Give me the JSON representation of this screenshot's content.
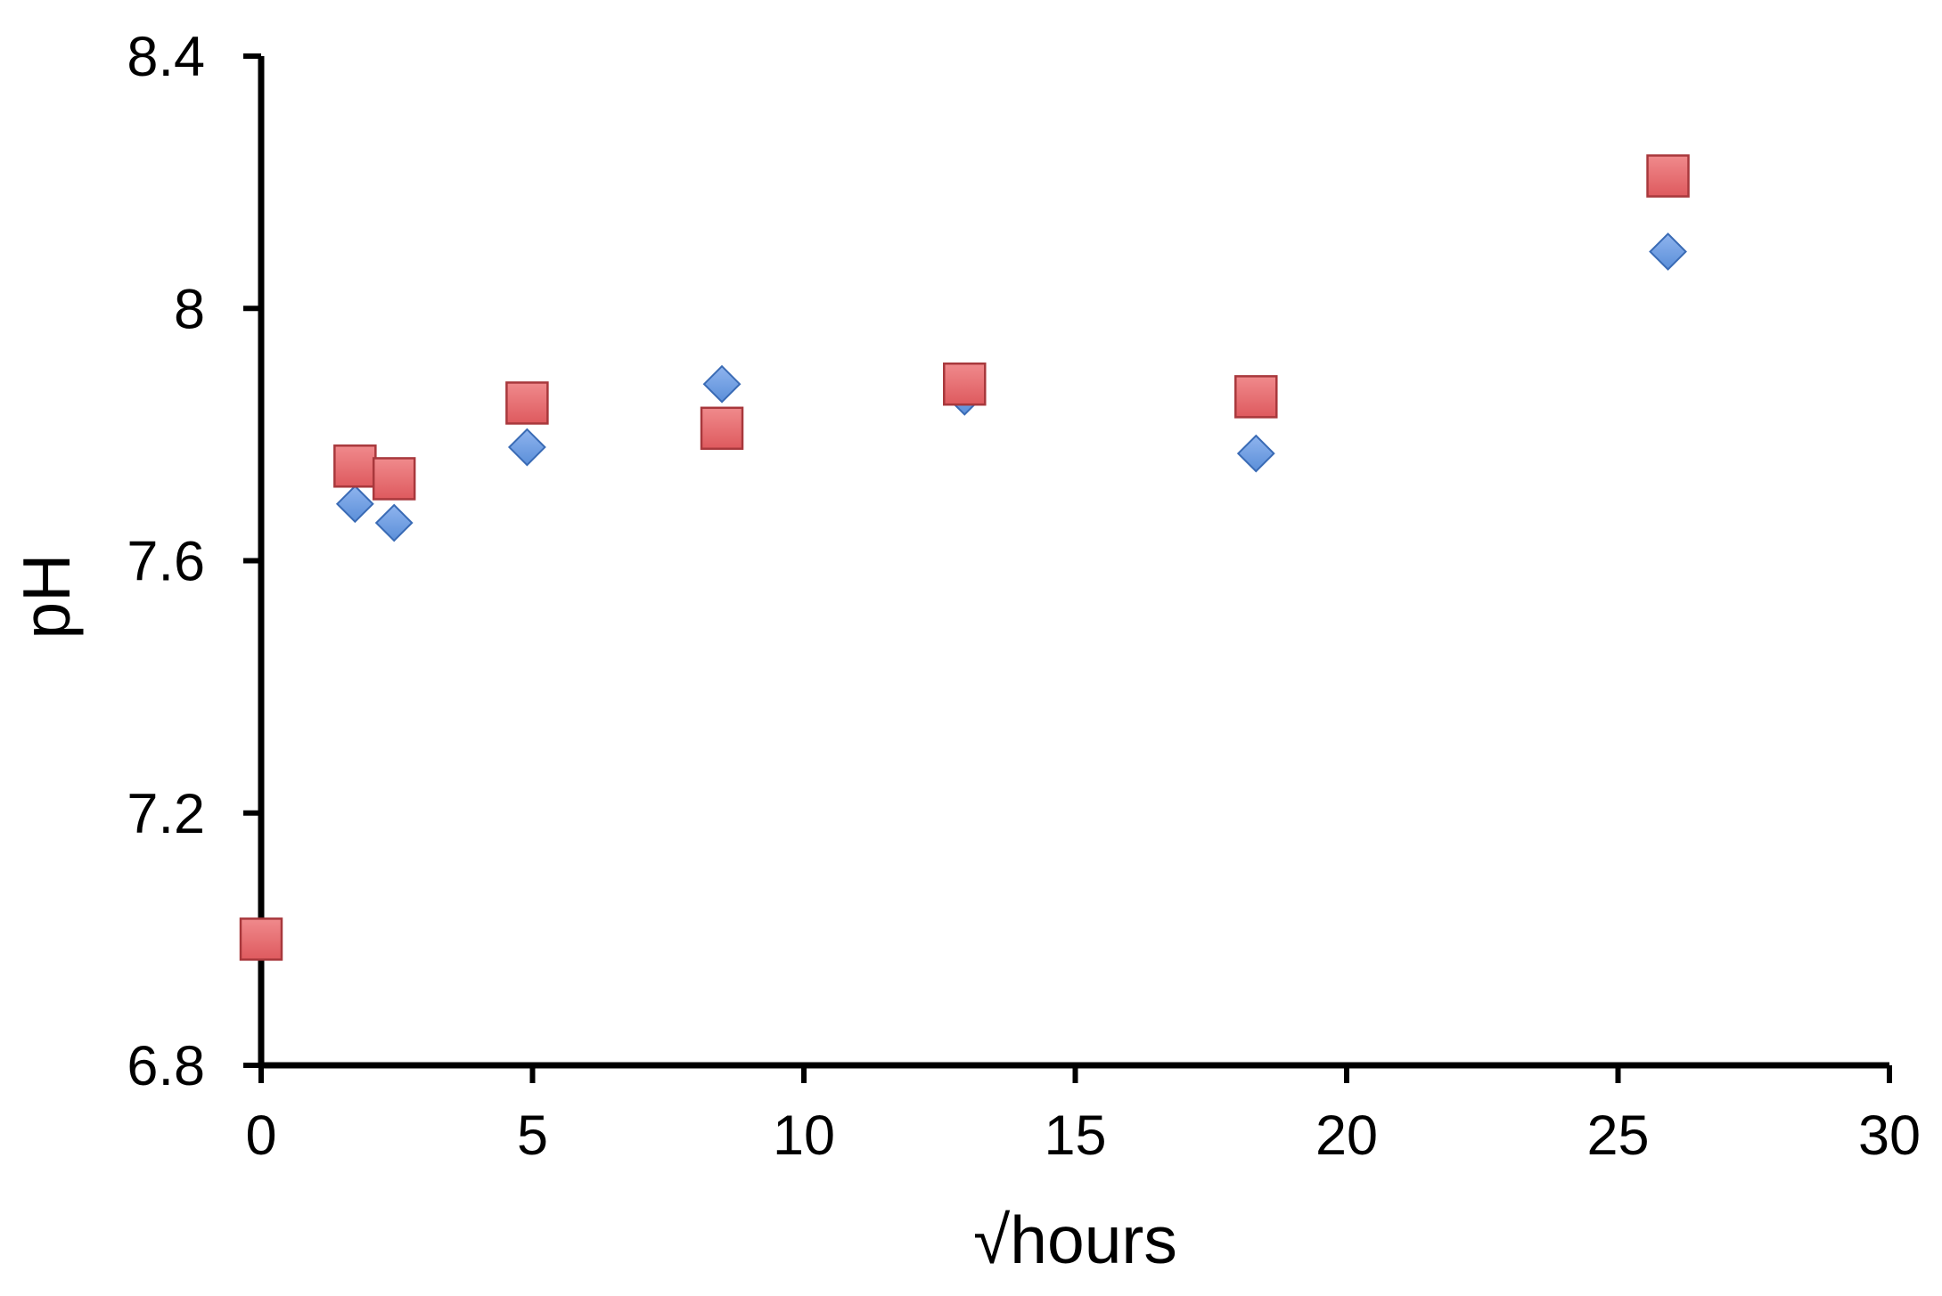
{
  "colors": {
    "series_diamond_fill": "#5b8fd9",
    "series_diamond_stroke": "#3a6bb5",
    "series_square_fill": "#de5a5e",
    "series_square_stroke": "#a8383c",
    "axis": "#000000"
  },
  "chart_data": {
    "type": "scatter",
    "title": "",
    "xlabel": "√hours",
    "ylabel": "pH",
    "xlim": [
      0,
      30
    ],
    "ylim": [
      6.8,
      8.4
    ],
    "x_ticks": [
      "0",
      "5",
      "10",
      "15",
      "20",
      "25",
      "30"
    ],
    "y_ticks": [
      "6.8",
      "7.2",
      "7.6",
      "8",
      "8.4"
    ],
    "grid": false,
    "legend": "none",
    "series": [
      {
        "marker": "diamond",
        "color": "#5b8fd9",
        "points": [
          {
            "x": 0,
            "y": 7.0
          },
          {
            "x": 1.73,
            "y": 7.69
          },
          {
            "x": 2.45,
            "y": 7.66
          },
          {
            "x": 4.9,
            "y": 7.78
          },
          {
            "x": 8.49,
            "y": 7.88
          },
          {
            "x": 12.96,
            "y": 7.86
          },
          {
            "x": 18.33,
            "y": 7.77
          },
          {
            "x": 25.92,
            "y": 8.09
          }
        ]
      },
      {
        "marker": "square",
        "color": "#de5a5e",
        "points": [
          {
            "x": 0,
            "y": 7.0
          },
          {
            "x": 1.73,
            "y": 7.75
          },
          {
            "x": 2.45,
            "y": 7.73
          },
          {
            "x": 4.9,
            "y": 7.85
          },
          {
            "x": 8.49,
            "y": 7.81
          },
          {
            "x": 12.96,
            "y": 7.88
          },
          {
            "x": 18.33,
            "y": 7.86
          },
          {
            "x": 25.92,
            "y": 8.21
          }
        ]
      }
    ]
  }
}
